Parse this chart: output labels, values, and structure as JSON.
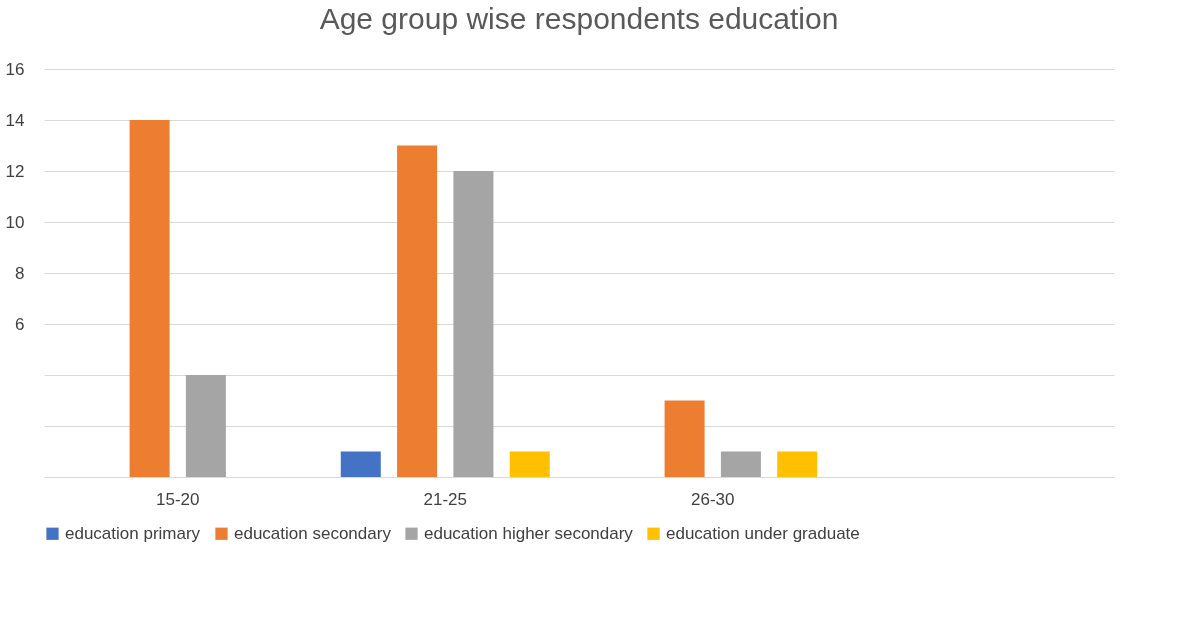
{
  "chart_data": {
    "type": "bar",
    "title": "Age group wise respondents education",
    "categories": [
      "15-20",
      "21-25",
      "26-30",
      null
    ],
    "series": [
      {
        "name": "education primary",
        "color": "#4472c4",
        "values": [
          null,
          1,
          null,
          null
        ]
      },
      {
        "name": "education secondary",
        "color": "#ed7d31",
        "values": [
          14,
          13,
          3,
          null
        ]
      },
      {
        "name": "education higher secondary",
        "color": "#a5a5a5",
        "values": [
          4,
          12,
          1,
          null
        ]
      },
      {
        "name": "education under graduate",
        "color": "#ffc000",
        "values": [
          null,
          1,
          1,
          null
        ]
      }
    ],
    "ylim": [
      0,
      16
    ],
    "yticks": [
      {
        "value": 0,
        "label": null
      },
      {
        "value": 2,
        "label": null
      },
      {
        "value": 4,
        "label": null
      },
      6,
      8,
      10,
      12,
      14,
      16
    ],
    "grid": "y",
    "legend": "bottom"
  }
}
